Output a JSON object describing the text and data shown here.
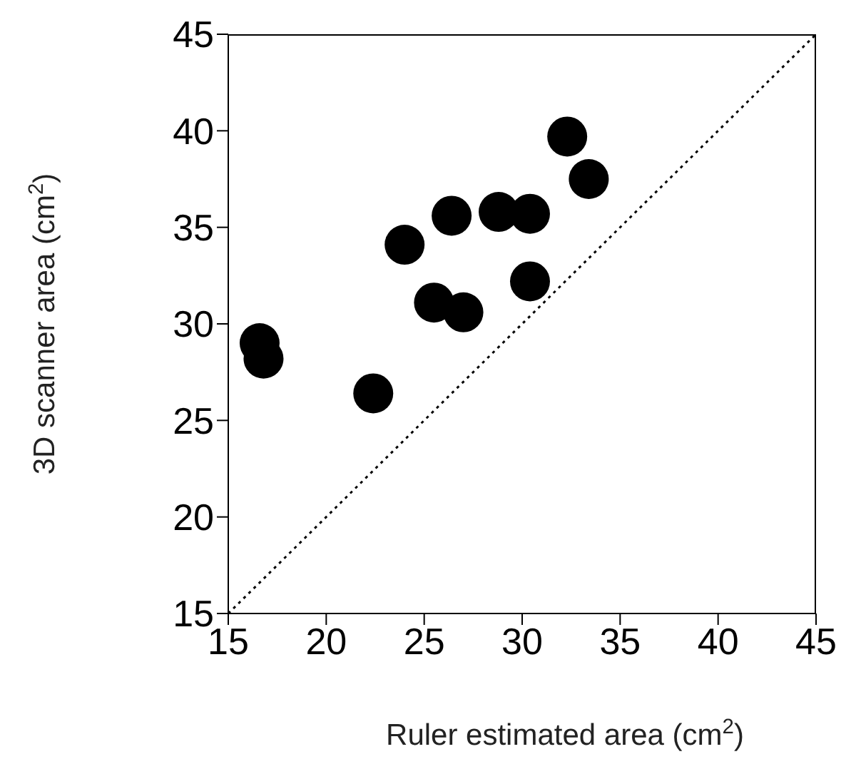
{
  "chart_data": {
    "type": "scatter",
    "xlabel": "Ruler estimated area (cm$^{2}$)",
    "ylabel": "3D scanner area (cm$^{2}$)",
    "xlim": [
      15,
      45
    ],
    "ylim": [
      15,
      45
    ],
    "xticks": [
      15,
      20,
      25,
      30,
      35,
      40,
      45
    ],
    "yticks": [
      15,
      20,
      25,
      30,
      35,
      40,
      45
    ],
    "marker": "circle",
    "series": [
      {
        "type": "scatter",
        "color": "#000000",
        "x": [
          16.6,
          16.8,
          22.4,
          24.0,
          25.5,
          27.0,
          26.4,
          28.8,
          30.4,
          30.4,
          32.3,
          33.4
        ],
        "values": [
          29.0,
          28.2,
          26.4,
          34.1,
          31.1,
          30.6,
          35.6,
          35.8,
          35.7,
          32.2,
          39.7,
          37.5
        ]
      },
      {
        "type": "line",
        "color": "#000000",
        "line_style": "dotted",
        "marker": "none",
        "x": [
          15,
          45
        ],
        "values": [
          15,
          45
        ]
      }
    ]
  }
}
